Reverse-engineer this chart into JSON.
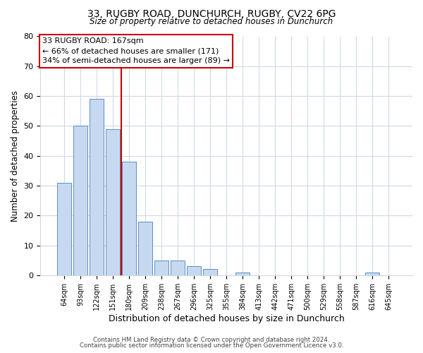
{
  "title": "33, RUGBY ROAD, DUNCHURCH, RUGBY, CV22 6PG",
  "subtitle": "Size of property relative to detached houses in Dunchurch",
  "xlabel": "Distribution of detached houses by size in Dunchurch",
  "ylabel": "Number of detached properties",
  "bar_labels": [
    "64sqm",
    "93sqm",
    "122sqm",
    "151sqm",
    "180sqm",
    "209sqm",
    "238sqm",
    "267sqm",
    "296sqm",
    "325sqm",
    "355sqm",
    "384sqm",
    "413sqm",
    "442sqm",
    "471sqm",
    "500sqm",
    "529sqm",
    "558sqm",
    "587sqm",
    "616sqm",
    "645sqm"
  ],
  "bar_values": [
    31,
    50,
    59,
    49,
    38,
    18,
    5,
    5,
    3,
    2,
    0,
    1,
    0,
    0,
    0,
    0,
    0,
    0,
    0,
    1,
    0
  ],
  "bar_color": "#c6d9f0",
  "bar_edge_color": "#5a8fc3",
  "vline_x": 3.5,
  "vline_color": "#cc0000",
  "ylim": [
    0,
    80
  ],
  "yticks": [
    0,
    10,
    20,
    30,
    40,
    50,
    60,
    70,
    80
  ],
  "annotation_line1": "33 RUGBY ROAD: 167sqm",
  "annotation_line2": "← 66% of detached houses are smaller (171)",
  "annotation_line3": "34% of semi-detached houses are larger (89) →",
  "annotation_box_edge": "#cc0000",
  "footer1": "Contains HM Land Registry data © Crown copyright and database right 2024.",
  "footer2": "Contains public sector information licensed under the Open Government Licence v3.0.",
  "background_color": "#ffffff",
  "grid_color": "#d0d8e8"
}
